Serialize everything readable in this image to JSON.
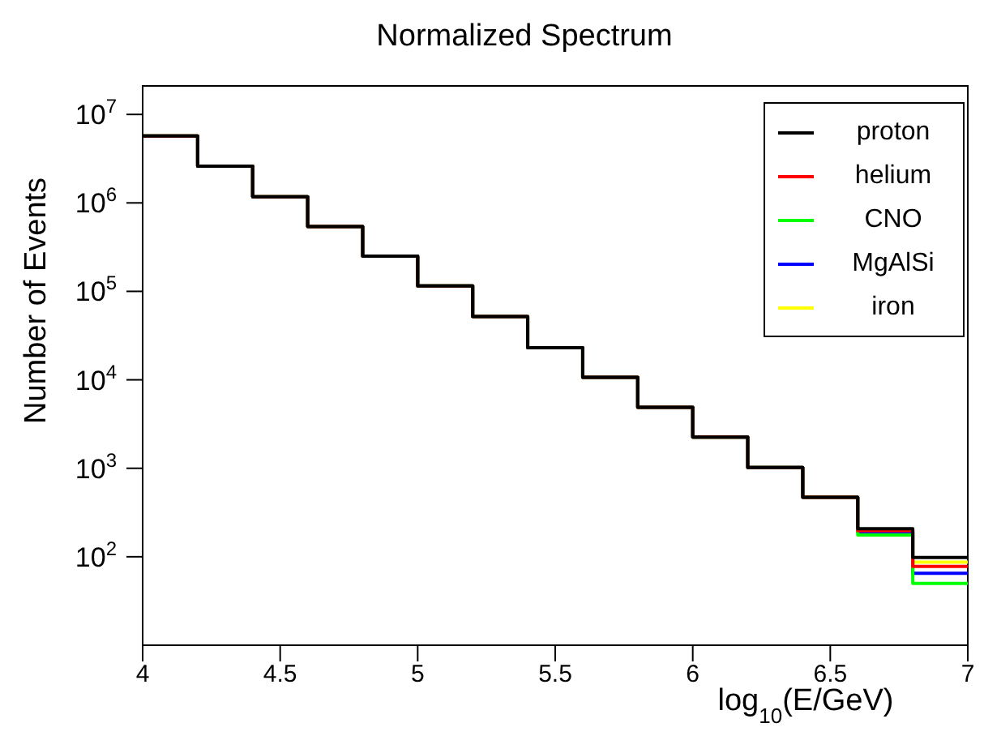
{
  "chart_data": {
    "type": "histogram",
    "title": "Normalized Spectrum",
    "xlabel": "log$_{10}$(E/GeV)",
    "ylabel": "Number of Events",
    "bins": [
      4,
      4.2,
      4.4,
      4.6,
      4.8,
      5,
      5.2,
      5.4,
      5.6,
      5.8,
      6,
      6.2,
      6.4,
      6.6,
      6.8,
      7
    ],
    "series": [
      {
        "name": "proton",
        "color": "#000000",
        "values": [
          5700000,
          2600000,
          1170000,
          540000,
          250000,
          115000,
          52000,
          23000,
          10700,
          4900,
          2250,
          1020,
          470,
          208,
          98
        ]
      },
      {
        "name": "helium",
        "color": "#ff0000",
        "values": [
          5700000,
          2600000,
          1170000,
          540000,
          250000,
          115000,
          52000,
          23000,
          10700,
          4900,
          2250,
          1020,
          470,
          197,
          78
        ]
      },
      {
        "name": "CNO",
        "color": "#00ff00",
        "values": [
          5700000,
          2600000,
          1170000,
          540000,
          250000,
          115000,
          52000,
          23000,
          10700,
          4900,
          2250,
          1020,
          470,
          176,
          50
        ]
      },
      {
        "name": "MgAlSi",
        "color": "#0000ff",
        "values": [
          5700000,
          2600000,
          1170000,
          540000,
          250000,
          115000,
          52000,
          23000,
          10700,
          4900,
          2250,
          1020,
          470,
          190,
          65
        ]
      },
      {
        "name": "iron",
        "color": "#ffff00",
        "values": [
          5700000,
          2600000,
          1170000,
          540000,
          250000,
          115000,
          52000,
          23000,
          10700,
          4900,
          2250,
          1020,
          470,
          200,
          87
        ]
      }
    ],
    "xlim": [
      4,
      7
    ],
    "xticks": [
      4,
      4.5,
      5,
      5.5,
      6,
      6.5,
      7
    ],
    "ylim": [
      10,
      21000000
    ],
    "yticks": [
      {
        "value": 100,
        "label": "10$^{2}$"
      },
      {
        "value": 1000,
        "label": "10$^{3}$"
      },
      {
        "value": 10000,
        "label": "10$^{4}$"
      },
      {
        "value": 100000,
        "label": "10$^{5}$"
      },
      {
        "value": 1000000,
        "label": "10$^{6}$"
      },
      {
        "value": 10000000,
        "label": "10$^{7}$"
      }
    ],
    "log": "y",
    "grid": false,
    "legend": "top right"
  }
}
